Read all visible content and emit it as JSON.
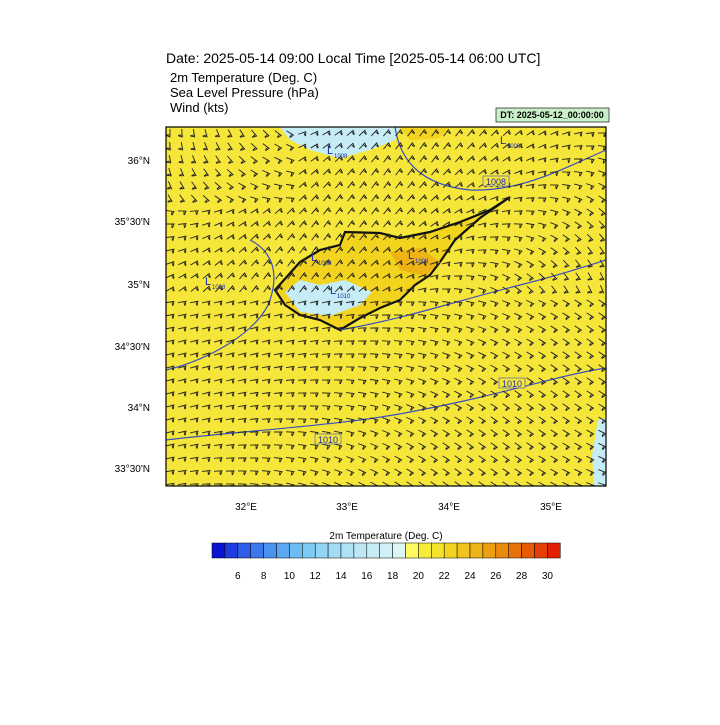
{
  "header": {
    "title": "Date: 2025-05-14  09:00 Local Time [2025-05-14  06:00 UTC]",
    "fields": [
      "2m Temperature (Deg. C)",
      "Sea Level Pressure   (hPa)",
      "Wind   (kts)"
    ]
  },
  "dt_label": "DT: 2025-05-12_00:00:00",
  "map": {
    "lat_labels": [
      "36°N",
      "35°30'N",
      "35°N",
      "34°30'N",
      "34°N",
      "33°30'N"
    ],
    "lon_labels": [
      "32°E",
      "33°E",
      "34°E",
      "35°E"
    ],
    "pressure_centers": [
      {
        "symbol": "L",
        "value": "1008"
      },
      {
        "symbol": "L",
        "value": "1008"
      },
      {
        "symbol": "L",
        "value": "1008"
      },
      {
        "symbol": "L",
        "value": "1008"
      },
      {
        "symbol": "L",
        "value": "1008"
      },
      {
        "symbol": "L",
        "value": "1010"
      }
    ],
    "contour_labels": [
      "1008",
      "1010",
      "1010"
    ]
  },
  "colorbar": {
    "title": "2m Temperature (Deg. C)",
    "ticks": [
      6,
      8,
      10,
      12,
      14,
      16,
      18,
      20,
      22,
      24,
      26,
      28,
      30
    ],
    "colors": [
      "#0a14d0",
      "#1e3ce0",
      "#2f5ee8",
      "#3c78ec",
      "#4a92f0",
      "#5aa8f2",
      "#6cbcf4",
      "#7ecaf6",
      "#90d4f6",
      "#a2dcf6",
      "#b0e2f6",
      "#bce8f6",
      "#c6ecf6",
      "#d0f0f6",
      "#dcf6f6",
      "#fffa60",
      "#f8ec3a",
      "#f5e22a",
      "#f2d41f",
      "#f0c41a",
      "#eeb315",
      "#eca010",
      "#ea8a0d",
      "#e8720a",
      "#e65a08",
      "#e44006",
      "#e22004"
    ]
  }
}
